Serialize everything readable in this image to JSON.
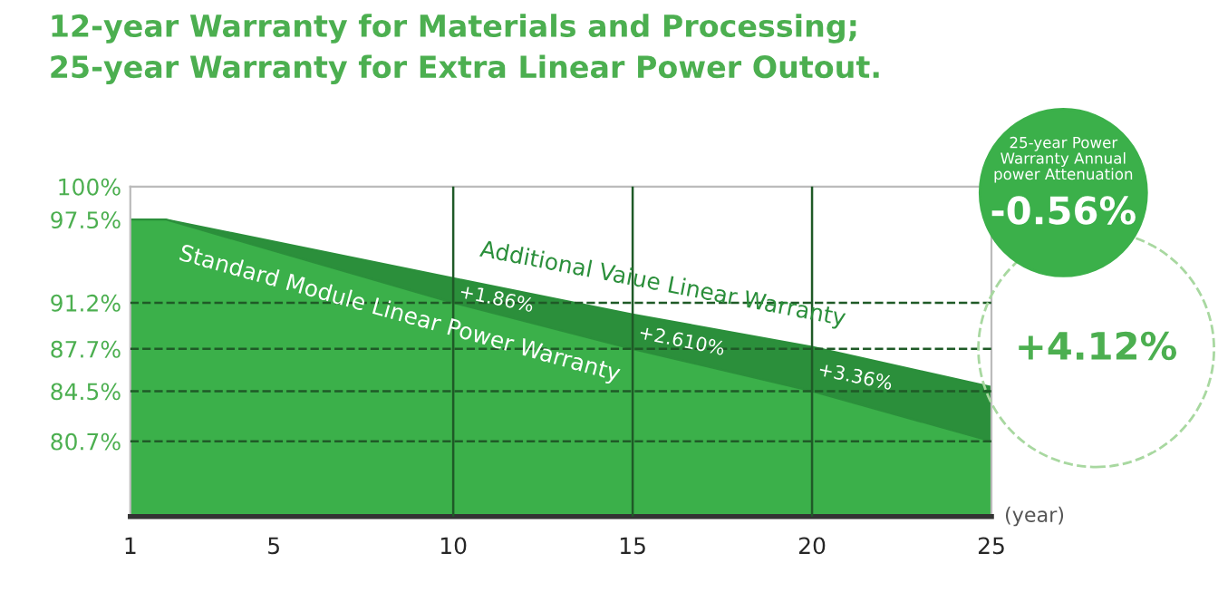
{
  "chart_data": {
    "type": "area",
    "title": "12-year Warranty for Materials and Processing;\n25-year Warranty for Extra Linear Power Outout.",
    "xlabel": "(year)",
    "x": [
      1,
      2,
      10,
      15,
      20,
      25
    ],
    "series": [
      {
        "name": "Standard Module Linear Power Warranty",
        "color": "#3bb04a",
        "values": [
          97.5,
          97.5,
          91.2,
          87.7,
          84.5,
          80.7
        ]
      },
      {
        "name": "Additional Vaiue Linear Warranty",
        "color": "#2b8f3b",
        "values": [
          97.5,
          97.5,
          93.06,
          90.31,
          87.86,
          84.82
        ]
      }
    ],
    "xlim": [
      1,
      25
    ],
    "xticks": [
      1,
      5,
      10,
      15,
      20,
      25
    ],
    "ylim": [
      75,
      100
    ],
    "yticks": [
      {
        "value": 100,
        "label": "100%"
      },
      {
        "value": 97.5,
        "label": "97.5%"
      },
      {
        "value": 91.2,
        "label": "91.2%"
      },
      {
        "value": 87.7,
        "label": "87.7%"
      },
      {
        "value": 84.5,
        "label": "84.5%"
      },
      {
        "value": 80.7,
        "label": "80.7%"
      }
    ],
    "ref_lines": [
      {
        "axis": "y",
        "value": 91.2,
        "color": "#1f5a27",
        "line_style": "dashed"
      },
      {
        "axis": "y",
        "value": 87.7,
        "color": "#1f5a27",
        "line_style": "dashed"
      },
      {
        "axis": "y",
        "value": 84.5,
        "color": "#1f5a27",
        "line_style": "dashed"
      },
      {
        "axis": "y",
        "value": 80.7,
        "color": "#1f5a27",
        "line_style": "dashed"
      },
      {
        "axis": "x",
        "value": 10,
        "color": "#1f5a27",
        "line_style": "solid"
      },
      {
        "axis": "x",
        "value": 15,
        "color": "#1f5a27",
        "line_style": "solid"
      },
      {
        "axis": "x",
        "value": 20,
        "color": "#1f5a27",
        "line_style": "solid"
      }
    ],
    "annotations": [
      {
        "text": "+1.86%",
        "x": 10,
        "y": 92.1
      },
      {
        "text": "+2.610%",
        "x": 15,
        "y": 89.0
      },
      {
        "text": "+3.36%",
        "x": 20,
        "y": 86.2
      },
      "25-year Power\nWarranty Annual\npower Attenuation",
      "-0.56%",
      "+4.12%"
    ],
    "grid": false,
    "legend": false
  }
}
